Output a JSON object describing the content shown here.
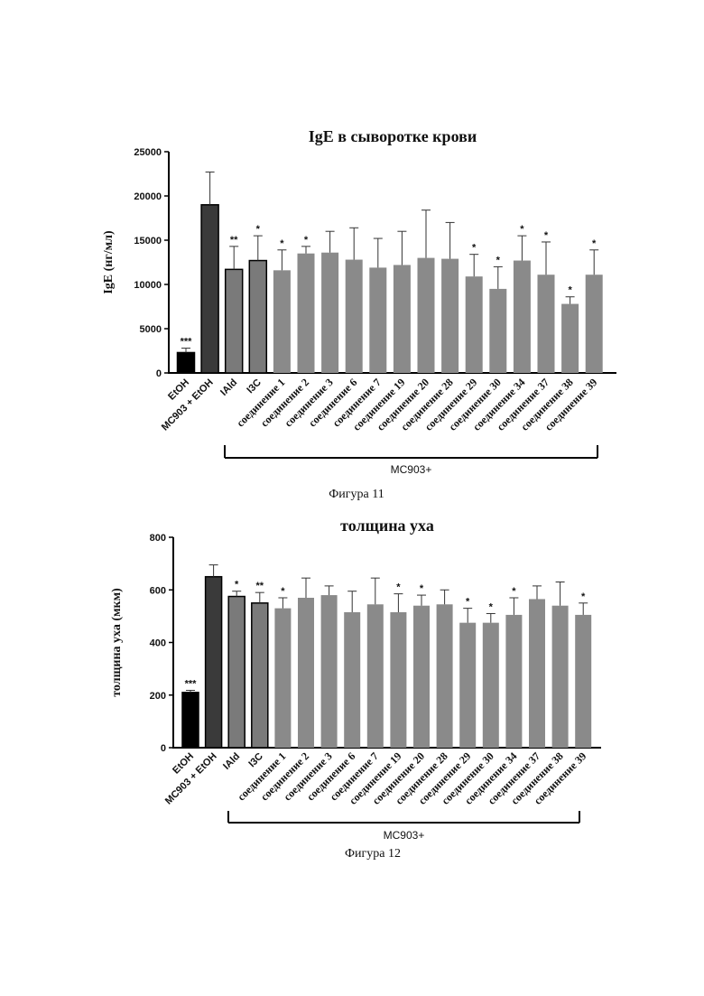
{
  "chart_data": [
    {
      "type": "bar",
      "title": "IgE в сыворотке крови",
      "xlabel": "",
      "ylabel": "IgE (нг/мл)",
      "ylim": [
        0,
        25000
      ],
      "yticks": [
        "0",
        "5000",
        "10000",
        "15000",
        "20000",
        "25000"
      ],
      "grid": false,
      "categories": [
        "EtOH",
        "MC903 + EtOH",
        "IAld",
        "I3C",
        "соединение 1",
        "соединение 2",
        "соединение 3",
        "соединение 6",
        "соединение 7",
        "соединение 19",
        "соединение 20",
        "соединение 28",
        "соединение 29",
        "соединение 30",
        "соединение 34",
        "соединение 37",
        "соединение 38",
        "соединение 39"
      ],
      "values": [
        2300,
        19000,
        11700,
        12700,
        11600,
        13500,
        13600,
        12800,
        11900,
        12200,
        13000,
        12900,
        10900,
        9500,
        12700,
        11100,
        7800,
        11100
      ],
      "errors": [
        500,
        3700,
        2600,
        2800,
        2300,
        800,
        2400,
        3600,
        3300,
        3800,
        5400,
        4100,
        2500,
        2500,
        2800,
        3700,
        800,
        2800
      ],
      "significance": [
        "***",
        "",
        "**",
        "*",
        "*",
        "*",
        "",
        "",
        "",
        "",
        "",
        "",
        "*",
        "*",
        "*",
        "*",
        "*",
        "*"
      ],
      "colors": [
        "#000000",
        "#3a3a3a",
        "#7a7a7a",
        "#7a7a7a",
        "#8a8a8a",
        "#8a8a8a",
        "#8a8a8a",
        "#8a8a8a",
        "#8a8a8a",
        "#8a8a8a",
        "#8a8a8a",
        "#8a8a8a",
        "#8a8a8a",
        "#8a8a8a",
        "#8a8a8a",
        "#8a8a8a",
        "#8a8a8a",
        "#8a8a8a"
      ],
      "group_label": "MC903+",
      "caption": "Фигура 11"
    },
    {
      "type": "bar",
      "title": "толщина уха",
      "xlabel": "",
      "ylabel": "толщина уха (мкм)",
      "ylim": [
        0,
        800
      ],
      "yticks": [
        "0",
        "200",
        "400",
        "600",
        "800"
      ],
      "grid": false,
      "categories": [
        "EtOH",
        "MC903 + EtOH",
        "IAld",
        "I3C",
        "соединение 1",
        "соединение 2",
        "соединение 3",
        "соединение 6",
        "соединение 7",
        "соединение 19",
        "соединение 20",
        "соединение 28",
        "соединение 29",
        "соединение 30",
        "соединение 34",
        "соединение 37",
        "соединение 38",
        "соединение 39"
      ],
      "values": [
        210,
        650,
        575,
        550,
        530,
        570,
        580,
        515,
        545,
        515,
        540,
        545,
        475,
        475,
        505,
        565,
        540,
        505
      ],
      "errors": [
        8,
        45,
        20,
        40,
        40,
        75,
        35,
        80,
        100,
        70,
        40,
        55,
        55,
        35,
        65,
        50,
        90,
        45
      ],
      "significance": [
        "***",
        "",
        "*",
        "**",
        "*",
        "",
        "",
        "",
        "",
        "*",
        "*",
        "",
        "*",
        "*",
        "*",
        "",
        "",
        "*"
      ],
      "colors": [
        "#000000",
        "#3a3a3a",
        "#7a7a7a",
        "#7a7a7a",
        "#8a8a8a",
        "#8a8a8a",
        "#8a8a8a",
        "#8a8a8a",
        "#8a8a8a",
        "#8a8a8a",
        "#8a8a8a",
        "#8a8a8a",
        "#8a8a8a",
        "#8a8a8a",
        "#8a8a8a",
        "#8a8a8a",
        "#8a8a8a",
        "#8a8a8a"
      ],
      "group_label": "MC903+",
      "caption": "Фигура 12"
    }
  ]
}
